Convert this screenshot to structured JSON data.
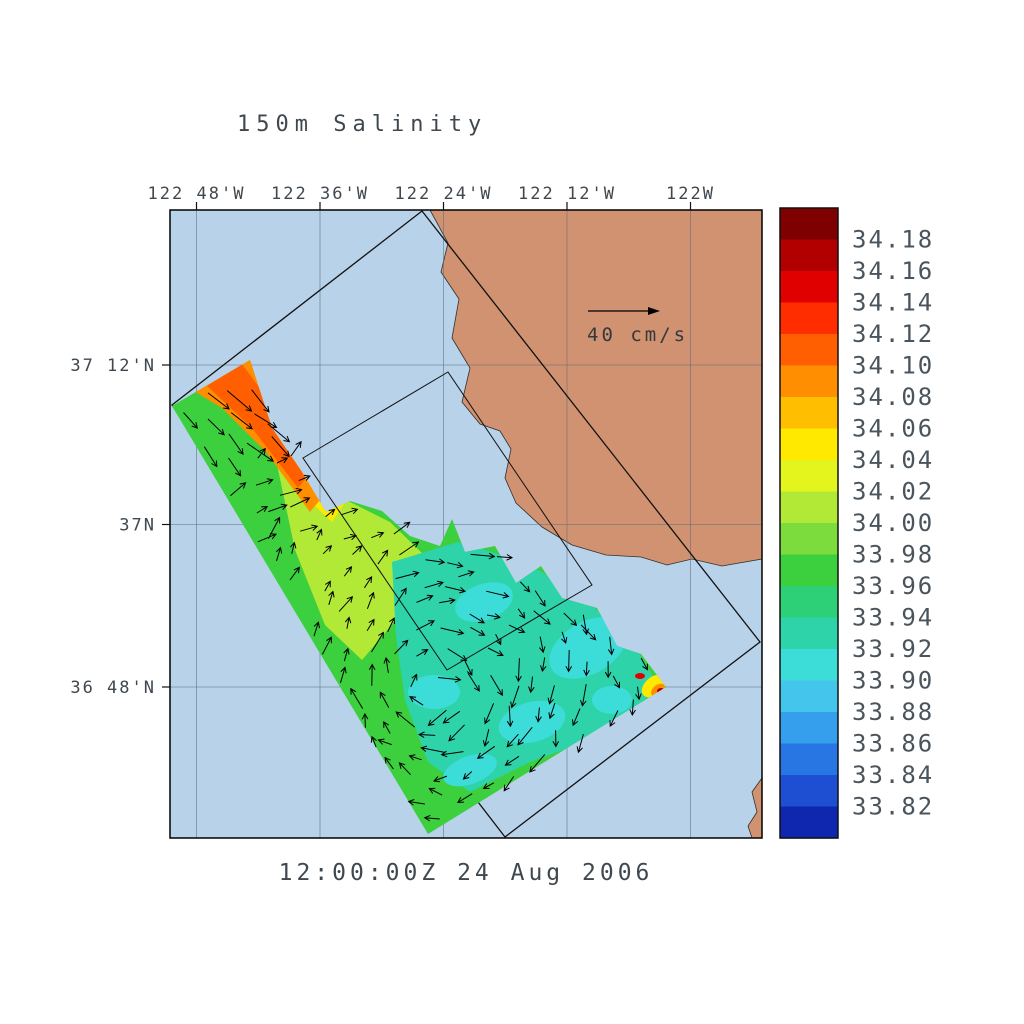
{
  "title": "150m Salinity",
  "timestamp": "12:00:00Z  24 Aug 2006",
  "scale_arrow": {
    "label": "40 cm/s"
  },
  "axes": {
    "top_labels": [
      "122 48'W",
      "122 36'W",
      "122 24'W",
      "122 12'W",
      "122W"
    ],
    "left_labels": [
      "37 12'N",
      "37N",
      "36 48'N"
    ]
  },
  "colorbar": {
    "labels": [
      "34.18",
      "34.16",
      "34.14",
      "34.12",
      "34.10",
      "34.08",
      "34.06",
      "34.04",
      "34.02",
      "34.00",
      "33.98",
      "33.96",
      "33.94",
      "33.92",
      "33.90",
      "33.88",
      "33.86",
      "33.84",
      "33.82"
    ],
    "colors": [
      "#7f0000",
      "#b20000",
      "#e10000",
      "#ff2d00",
      "#ff5f00",
      "#ff8e00",
      "#ffbf00",
      "#ffe900",
      "#e4f51e",
      "#b2e936",
      "#7cdc3e",
      "#3ccf3e",
      "#2ed077",
      "#2ed3aa",
      "#3cdcd8",
      "#44c6ec",
      "#359fee",
      "#2876e4",
      "#1e4fd2",
      "#0f27ae"
    ]
  },
  "colors": {
    "ocean": "#b8d2ea",
    "land": "#d09270",
    "coast_outline": "#33302c",
    "domain_outline": "#111111",
    "arrow": "#000000",
    "text": "#40484f"
  },
  "chart_data": {
    "type": "heatmap",
    "title": "150m Salinity",
    "valid_time": "12:00:00Z 24 Aug 2006",
    "x_tick_labels": [
      "122 48'W",
      "122 36'W",
      "122 24'W",
      "122 12'W",
      "122W"
    ],
    "y_tick_labels": [
      "37 12'N",
      "37N",
      "36 48'N"
    ],
    "colorbar_ticks": [
      34.18,
      34.16,
      34.14,
      34.12,
      34.1,
      34.08,
      34.06,
      34.04,
      34.02,
      34.0,
      33.98,
      33.96,
      33.94,
      33.92,
      33.9,
      33.88,
      33.86,
      33.84,
      33.82
    ],
    "colorbar_step": 0.02,
    "legend_position": "right colorbar",
    "grid": true,
    "vector_overlay": {
      "type": "current velocity arrows",
      "scale_label": "40 cm/s",
      "scale_value": 40,
      "units": "cm/s"
    },
    "features": [
      {
        "name": "high-salinity jet band along northwest edge of data swath",
        "approx_value_range": [
          34.04,
          34.12
        ]
      },
      {
        "name": "interior field with eddy circulation near center of swath",
        "approx_value_range": [
          33.92,
          34.02
        ]
      },
      {
        "name": "small high-salinity spots near east corner of data swath",
        "approx_value_range": [
          34.1,
          34.16
        ]
      },
      {
        "name": "tan land mask of California coast around Monterey Bay",
        "masked": true
      },
      {
        "name": "rotated outer model domain outline and nested inner domain outline",
        "masked": true
      }
    ]
  }
}
